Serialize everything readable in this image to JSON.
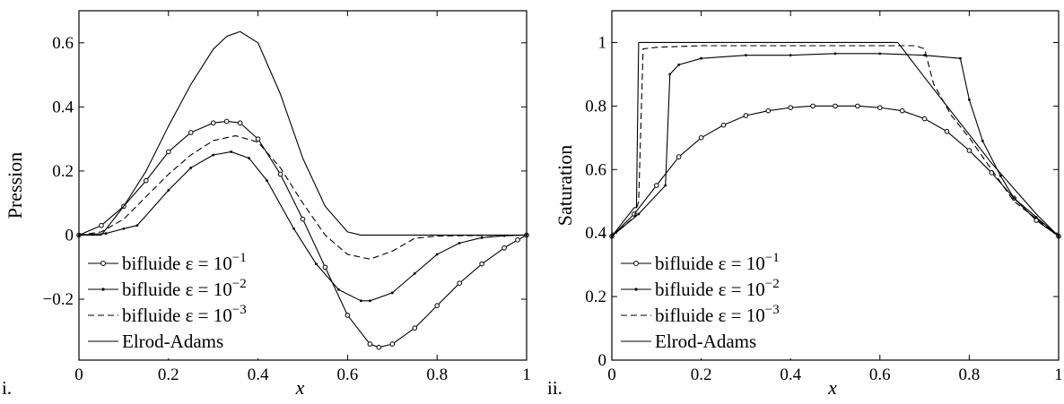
{
  "chart_data": [
    {
      "type": "line",
      "panel_label": "i.",
      "title": "",
      "xlabel": "x",
      "ylabel": "Pression",
      "xlim": [
        0,
        1
      ],
      "ylim": [
        -0.39,
        0.7
      ],
      "xticks": [
        "0",
        "0.2",
        "0.4",
        "0.6",
        "0.8",
        "1"
      ],
      "yticks": [
        "−0.2",
        "0",
        "0.2",
        "0.4",
        "0.6"
      ],
      "xtick_values": [
        0,
        0.2,
        0.4,
        0.6,
        0.8,
        1
      ],
      "ytick_values": [
        -0.2,
        0,
        0.2,
        0.4,
        0.6
      ],
      "grid": false,
      "legend_position": "bottom-left",
      "series": [
        {
          "name": "bifluide ε = 10⁻¹",
          "legend_main": "bifluide ε = 10",
          "legend_exp": "−1",
          "style": "circle-marker",
          "x": [
            0,
            0.05,
            0.1,
            0.15,
            0.2,
            0.25,
            0.3,
            0.33,
            0.36,
            0.4,
            0.45,
            0.5,
            0.55,
            0.6,
            0.65,
            0.67,
            0.7,
            0.75,
            0.8,
            0.85,
            0.9,
            0.95,
            0.98,
            1
          ],
          "y": [
            0,
            0.03,
            0.09,
            0.17,
            0.26,
            0.32,
            0.35,
            0.355,
            0.35,
            0.3,
            0.19,
            0.05,
            -0.1,
            -0.25,
            -0.34,
            -0.35,
            -0.34,
            -0.29,
            -0.22,
            -0.15,
            -0.09,
            -0.04,
            -0.015,
            0
          ]
        },
        {
          "name": "bifluide ε = 10⁻²",
          "legend_main": "bifluide ε = 10",
          "legend_exp": "−2",
          "style": "dot-marker",
          "x": [
            0,
            0.06,
            0.1,
            0.13,
            0.2,
            0.25,
            0.3,
            0.34,
            0.38,
            0.42,
            0.48,
            0.53,
            0.58,
            0.63,
            0.65,
            0.7,
            0.75,
            0.8,
            0.85,
            0.9,
            0.95,
            1
          ],
          "y": [
            0,
            0.005,
            0.02,
            0.03,
            0.14,
            0.21,
            0.25,
            0.26,
            0.24,
            0.17,
            0.02,
            -0.09,
            -0.17,
            -0.205,
            -0.205,
            -0.18,
            -0.12,
            -0.06,
            -0.025,
            -0.008,
            -0.002,
            0
          ]
        },
        {
          "name": "bifluide ε = 10⁻³",
          "legend_main": "bifluide ε = 10",
          "legend_exp": "−3",
          "style": "dashed",
          "x": [
            0,
            0.05,
            0.1,
            0.15,
            0.2,
            0.25,
            0.3,
            0.35,
            0.4,
            0.45,
            0.5,
            0.55,
            0.6,
            0.65,
            0.7,
            0.75,
            0.8,
            0.9,
            1
          ],
          "y": [
            0,
            0.01,
            0.05,
            0.12,
            0.19,
            0.25,
            0.295,
            0.31,
            0.29,
            0.21,
            0.1,
            0,
            -0.06,
            -0.075,
            -0.05,
            -0.01,
            -0.003,
            -0.001,
            0
          ]
        },
        {
          "name": "Elrod-Adams",
          "legend_main": "Elrod-Adams",
          "legend_exp": "",
          "style": "solid",
          "x": [
            0,
            0.05,
            0.1,
            0.15,
            0.2,
            0.25,
            0.3,
            0.33,
            0.36,
            0.4,
            0.45,
            0.5,
            0.55,
            0.6,
            0.63,
            0.7,
            0.8,
            0.9,
            1
          ],
          "y": [
            0,
            0,
            0.09,
            0.2,
            0.34,
            0.47,
            0.58,
            0.62,
            0.635,
            0.6,
            0.44,
            0.24,
            0.09,
            0.01,
            0,
            0,
            0,
            0,
            0
          ]
        }
      ]
    },
    {
      "type": "line",
      "panel_label": "ii.",
      "title": "",
      "xlabel": "x",
      "ylabel": "Saturation",
      "xlim": [
        0,
        1
      ],
      "ylim": [
        0,
        1.1
      ],
      "xticks": [
        "0",
        "0.2",
        "0.4",
        "0.6",
        "0.8",
        "1"
      ],
      "yticks": [
        "0",
        "0.2",
        "0.4",
        "0.6",
        "0.8",
        "1"
      ],
      "xtick_values": [
        0,
        0.2,
        0.4,
        0.6,
        0.8,
        1
      ],
      "ytick_values": [
        0,
        0.2,
        0.4,
        0.6,
        0.8,
        1
      ],
      "grid": false,
      "legend_position": "bottom-left",
      "series": [
        {
          "name": "bifluide ε = 10⁻¹",
          "legend_main": "bifluide ε = 10",
          "legend_exp": "−1",
          "style": "circle-marker",
          "x": [
            0,
            0.05,
            0.1,
            0.15,
            0.2,
            0.25,
            0.3,
            0.35,
            0.4,
            0.45,
            0.5,
            0.55,
            0.6,
            0.65,
            0.7,
            0.75,
            0.8,
            0.85,
            0.9,
            0.95,
            1
          ],
          "y": [
            0.39,
            0.46,
            0.55,
            0.64,
            0.7,
            0.74,
            0.77,
            0.785,
            0.795,
            0.8,
            0.8,
            0.8,
            0.795,
            0.785,
            0.76,
            0.72,
            0.66,
            0.59,
            0.51,
            0.44,
            0.39
          ]
        },
        {
          "name": "bifluide ε = 10⁻²",
          "legend_main": "bifluide ε = 10",
          "legend_exp": "−2",
          "style": "dot-marker",
          "x": [
            0,
            0.06,
            0.12,
            0.13,
            0.15,
            0.2,
            0.3,
            0.4,
            0.5,
            0.6,
            0.7,
            0.78,
            0.8,
            0.83,
            0.87,
            0.9,
            0.95,
            1
          ],
          "y": [
            0.39,
            0.46,
            0.55,
            0.9,
            0.93,
            0.95,
            0.96,
            0.96,
            0.965,
            0.965,
            0.96,
            0.95,
            0.82,
            0.69,
            0.58,
            0.51,
            0.45,
            0.39
          ]
        },
        {
          "name": "bifluide ε = 10⁻³",
          "legend_main": "bifluide ε = 10",
          "legend_exp": "−3",
          "style": "dashed",
          "x": [
            0,
            0.05,
            0.06,
            0.07,
            0.1,
            0.2,
            0.3,
            0.4,
            0.5,
            0.6,
            0.68,
            0.7,
            0.72,
            0.76,
            0.8,
            0.85,
            0.9,
            1
          ],
          "y": [
            0.39,
            0.45,
            0.5,
            0.98,
            0.985,
            0.99,
            0.99,
            0.99,
            0.99,
            0.99,
            0.99,
            0.98,
            0.87,
            0.77,
            0.7,
            0.6,
            0.5,
            0.39
          ]
        },
        {
          "name": "Elrod-Adams",
          "legend_main": "Elrod-Adams",
          "legend_exp": "",
          "style": "solid",
          "x": [
            0,
            0.05,
            0.055,
            0.06,
            0.2,
            0.4,
            0.6,
            0.64,
            0.7,
            0.75,
            0.8,
            0.85,
            0.9,
            0.95,
            1
          ],
          "y": [
            0.39,
            0.48,
            0.48,
            1,
            1,
            1,
            1,
            1,
            0.89,
            0.8,
            0.71,
            0.62,
            0.54,
            0.46,
            0.39
          ]
        }
      ]
    }
  ]
}
